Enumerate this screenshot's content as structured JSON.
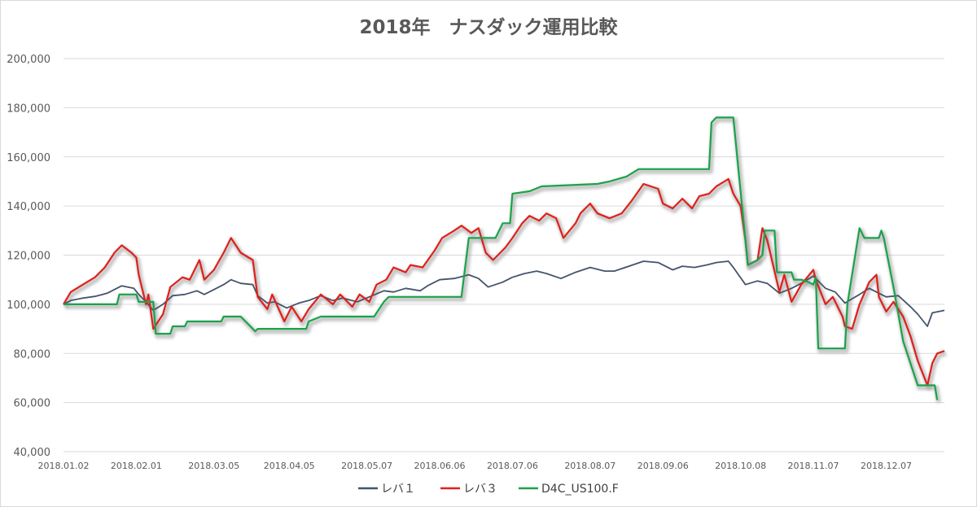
{
  "chart_data": {
    "type": "line",
    "title": "2018年　ナスダック運用比較",
    "xlabel": "",
    "ylabel": "",
    "ylim": [
      40000,
      200000
    ],
    "yticks": [
      40000,
      60000,
      80000,
      100000,
      120000,
      140000,
      160000,
      180000,
      200000
    ],
    "ytick_labels": [
      "40,000",
      "60,000",
      "80,000",
      "100,000",
      "120,000",
      "140,000",
      "160,000",
      "180,000",
      "200,000"
    ],
    "xlim": [
      "2018-01-02",
      "2018-12-31"
    ],
    "xticks": [
      "2018-01-02",
      "2018-02-01",
      "2018-03-05",
      "2018-04-05",
      "2018-05-07",
      "2018-06-06",
      "2018-07-06",
      "2018-08-07",
      "2018-09-06",
      "2018-10-08",
      "2018-11-07",
      "2018-12-07"
    ],
    "xtick_labels": [
      "2018.01.02",
      "2018.02.01",
      "2018.03.05",
      "2018.04.05",
      "2018.05.07",
      "2018.06.06",
      "2018.07.06",
      "2018.08.07",
      "2018.09.06",
      "2018.10.08",
      "2018.11.07",
      "2018.12.07"
    ],
    "grid": true,
    "legend_position": "bottom",
    "series": [
      {
        "name": "レバ１",
        "color": "#44546a",
        "shadow": false,
        "points": [
          [
            "2018-01-02",
            100000
          ],
          [
            "2018-01-05",
            101500
          ],
          [
            "2018-01-10",
            102500
          ],
          [
            "2018-01-15",
            103200
          ],
          [
            "2018-01-20",
            104500
          ],
          [
            "2018-01-26",
            107500
          ],
          [
            "2018-01-31",
            106500
          ],
          [
            "2018-02-02",
            104000
          ],
          [
            "2018-02-05",
            101000
          ],
          [
            "2018-02-08",
            97500
          ],
          [
            "2018-02-12",
            100000
          ],
          [
            "2018-02-16",
            103500
          ],
          [
            "2018-02-21",
            104000
          ],
          [
            "2018-02-26",
            105500
          ],
          [
            "2018-03-01",
            104000
          ],
          [
            "2018-03-05",
            106000
          ],
          [
            "2018-03-09",
            108000
          ],
          [
            "2018-03-12",
            110000
          ],
          [
            "2018-03-16",
            108500
          ],
          [
            "2018-03-21",
            108000
          ],
          [
            "2018-03-23",
            103500
          ],
          [
            "2018-03-27",
            100500
          ],
          [
            "2018-03-30",
            101000
          ],
          [
            "2018-04-04",
            98500
          ],
          [
            "2018-04-09",
            100500
          ],
          [
            "2018-04-13",
            101500
          ],
          [
            "2018-04-18",
            103500
          ],
          [
            "2018-04-23",
            101500
          ],
          [
            "2018-04-27",
            102500
          ],
          [
            "2018-05-03",
            101000
          ],
          [
            "2018-05-08",
            103000
          ],
          [
            "2018-05-14",
            105500
          ],
          [
            "2018-05-18",
            105000
          ],
          [
            "2018-05-23",
            106500
          ],
          [
            "2018-05-29",
            105500
          ],
          [
            "2018-06-01",
            107500
          ],
          [
            "2018-06-06",
            110000
          ],
          [
            "2018-06-12",
            110500
          ],
          [
            "2018-06-18",
            112000
          ],
          [
            "2018-06-22",
            110500
          ],
          [
            "2018-06-26",
            107000
          ],
          [
            "2018-07-02",
            109000
          ],
          [
            "2018-07-06",
            111000
          ],
          [
            "2018-07-11",
            112500
          ],
          [
            "2018-07-16",
            113500
          ],
          [
            "2018-07-20",
            112500
          ],
          [
            "2018-07-26",
            110500
          ],
          [
            "2018-08-01",
            113000
          ],
          [
            "2018-08-07",
            115000
          ],
          [
            "2018-08-13",
            113500
          ],
          [
            "2018-08-17",
            113500
          ],
          [
            "2018-08-23",
            115500
          ],
          [
            "2018-08-29",
            117500
          ],
          [
            "2018-09-04",
            117000
          ],
          [
            "2018-09-10",
            114000
          ],
          [
            "2018-09-14",
            115500
          ],
          [
            "2018-09-19",
            115000
          ],
          [
            "2018-09-24",
            116000
          ],
          [
            "2018-09-28",
            117000
          ],
          [
            "2018-10-03",
            117500
          ],
          [
            "2018-10-05",
            115000
          ],
          [
            "2018-10-10",
            108000
          ],
          [
            "2018-10-15",
            109500
          ],
          [
            "2018-10-19",
            108500
          ],
          [
            "2018-10-24",
            104500
          ],
          [
            "2018-10-29",
            106500
          ],
          [
            "2018-11-02",
            108500
          ],
          [
            "2018-11-07",
            111500
          ],
          [
            "2018-11-12",
            106500
          ],
          [
            "2018-11-16",
            105000
          ],
          [
            "2018-11-20",
            100500
          ],
          [
            "2018-11-26",
            104000
          ],
          [
            "2018-11-30",
            106500
          ],
          [
            "2018-12-04",
            104500
          ],
          [
            "2018-12-07",
            103000
          ],
          [
            "2018-12-12",
            103500
          ],
          [
            "2018-12-17",
            99000
          ],
          [
            "2018-12-20",
            96000
          ],
          [
            "2018-12-24",
            91000
          ],
          [
            "2018-12-26",
            96500
          ],
          [
            "2018-12-31",
            97500
          ]
        ]
      },
      {
        "name": "レバ３",
        "color": "#e0201b",
        "shadow": true,
        "points": [
          [
            "2018-01-02",
            100000
          ],
          [
            "2018-01-05",
            105000
          ],
          [
            "2018-01-10",
            108000
          ],
          [
            "2018-01-15",
            111000
          ],
          [
            "2018-01-19",
            115000
          ],
          [
            "2018-01-23",
            121000
          ],
          [
            "2018-01-26",
            124000
          ],
          [
            "2018-01-30",
            121000
          ],
          [
            "2018-02-01",
            119000
          ],
          [
            "2018-02-02",
            112000
          ],
          [
            "2018-02-05",
            100000
          ],
          [
            "2018-02-06",
            104000
          ],
          [
            "2018-02-08",
            90000
          ],
          [
            "2018-02-12",
            96000
          ],
          [
            "2018-02-15",
            107000
          ],
          [
            "2018-02-20",
            111000
          ],
          [
            "2018-02-23",
            110000
          ],
          [
            "2018-02-27",
            118000
          ],
          [
            "2018-03-01",
            110000
          ],
          [
            "2018-03-05",
            114000
          ],
          [
            "2018-03-09",
            121000
          ],
          [
            "2018-03-12",
            127000
          ],
          [
            "2018-03-16",
            121000
          ],
          [
            "2018-03-21",
            118000
          ],
          [
            "2018-03-23",
            103000
          ],
          [
            "2018-03-27",
            98000
          ],
          [
            "2018-03-29",
            104000
          ],
          [
            "2018-04-03",
            93000
          ],
          [
            "2018-04-06",
            99000
          ],
          [
            "2018-04-10",
            93000
          ],
          [
            "2018-04-13",
            98000
          ],
          [
            "2018-04-18",
            104000
          ],
          [
            "2018-04-23",
            100000
          ],
          [
            "2018-04-26",
            104000
          ],
          [
            "2018-05-01",
            99000
          ],
          [
            "2018-05-04",
            104000
          ],
          [
            "2018-05-08",
            101000
          ],
          [
            "2018-05-11",
            108000
          ],
          [
            "2018-05-15",
            110000
          ],
          [
            "2018-05-18",
            115000
          ],
          [
            "2018-05-23",
            113000
          ],
          [
            "2018-05-25",
            116000
          ],
          [
            "2018-05-30",
            115000
          ],
          [
            "2018-06-04",
            122000
          ],
          [
            "2018-06-07",
            127000
          ],
          [
            "2018-06-12",
            130000
          ],
          [
            "2018-06-15",
            132000
          ],
          [
            "2018-06-19",
            129000
          ],
          [
            "2018-06-22",
            131000
          ],
          [
            "2018-06-25",
            121000
          ],
          [
            "2018-06-28",
            118000
          ],
          [
            "2018-07-03",
            123000
          ],
          [
            "2018-07-06",
            127000
          ],
          [
            "2018-07-10",
            133000
          ],
          [
            "2018-07-13",
            136000
          ],
          [
            "2018-07-17",
            134000
          ],
          [
            "2018-07-20",
            137000
          ],
          [
            "2018-07-24",
            135000
          ],
          [
            "2018-07-27",
            127000
          ],
          [
            "2018-08-01",
            133000
          ],
          [
            "2018-08-03",
            137000
          ],
          [
            "2018-08-07",
            141000
          ],
          [
            "2018-08-10",
            137000
          ],
          [
            "2018-08-15",
            135000
          ],
          [
            "2018-08-20",
            137000
          ],
          [
            "2018-08-24",
            142000
          ],
          [
            "2018-08-29",
            149000
          ],
          [
            "2018-09-04",
            147000
          ],
          [
            "2018-09-06",
            141000
          ],
          [
            "2018-09-10",
            139000
          ],
          [
            "2018-09-14",
            143000
          ],
          [
            "2018-09-18",
            139000
          ],
          [
            "2018-09-21",
            144000
          ],
          [
            "2018-09-25",
            145000
          ],
          [
            "2018-09-28",
            148000
          ],
          [
            "2018-10-03",
            151000
          ],
          [
            "2018-10-05",
            145000
          ],
          [
            "2018-10-08",
            140000
          ],
          [
            "2018-10-10",
            126000
          ],
          [
            "2018-10-11",
            116000
          ],
          [
            "2018-10-15",
            118000
          ],
          [
            "2018-10-17",
            131000
          ],
          [
            "2018-10-19",
            126000
          ],
          [
            "2018-10-24",
            105000
          ],
          [
            "2018-10-26",
            112000
          ],
          [
            "2018-10-29",
            101000
          ],
          [
            "2018-11-02",
            108000
          ],
          [
            "2018-11-07",
            114000
          ],
          [
            "2018-11-08",
            110000
          ],
          [
            "2018-11-12",
            100000
          ],
          [
            "2018-11-15",
            103000
          ],
          [
            "2018-11-19",
            95000
          ],
          [
            "2018-11-20",
            91000
          ],
          [
            "2018-11-23",
            90000
          ],
          [
            "2018-11-26",
            100000
          ],
          [
            "2018-11-30",
            109000
          ],
          [
            "2018-12-03",
            112000
          ],
          [
            "2018-12-04",
            103000
          ],
          [
            "2018-12-07",
            97000
          ],
          [
            "2018-12-10",
            101000
          ],
          [
            "2018-12-14",
            95000
          ],
          [
            "2018-12-17",
            87000
          ],
          [
            "2018-12-20",
            77000
          ],
          [
            "2018-12-24",
            67000
          ],
          [
            "2018-12-26",
            76000
          ],
          [
            "2018-12-28",
            80000
          ],
          [
            "2018-12-31",
            81000
          ]
        ]
      },
      {
        "name": "D4C_US100.F",
        "color": "#1aa34a",
        "shadow": true,
        "points": [
          [
            "2018-01-02",
            100000
          ],
          [
            "2018-01-24",
            100000
          ],
          [
            "2018-01-25",
            104000
          ],
          [
            "2018-02-01",
            104000
          ],
          [
            "2018-02-02",
            101000
          ],
          [
            "2018-02-08",
            101000
          ],
          [
            "2018-02-09",
            88000
          ],
          [
            "2018-02-15",
            88000
          ],
          [
            "2018-02-16",
            91000
          ],
          [
            "2018-02-21",
            91000
          ],
          [
            "2018-02-22",
            93000
          ],
          [
            "2018-03-08",
            93000
          ],
          [
            "2018-03-09",
            95000
          ],
          [
            "2018-03-16",
            95000
          ],
          [
            "2018-03-20",
            91000
          ],
          [
            "2018-03-22",
            89000
          ],
          [
            "2018-03-23",
            90000
          ],
          [
            "2018-04-12",
            90000
          ],
          [
            "2018-04-13",
            93000
          ],
          [
            "2018-04-18",
            95000
          ],
          [
            "2018-05-10",
            95000
          ],
          [
            "2018-05-14",
            101000
          ],
          [
            "2018-05-16",
            103000
          ],
          [
            "2018-06-15",
            103000
          ],
          [
            "2018-06-18",
            127000
          ],
          [
            "2018-06-29",
            127000
          ],
          [
            "2018-07-02",
            133000
          ],
          [
            "2018-07-05",
            133000
          ],
          [
            "2018-07-06",
            145000
          ],
          [
            "2018-07-13",
            146000
          ],
          [
            "2018-07-18",
            148000
          ],
          [
            "2018-08-10",
            149000
          ],
          [
            "2018-08-15",
            150000
          ],
          [
            "2018-08-22",
            152000
          ],
          [
            "2018-08-27",
            155000
          ],
          [
            "2018-09-25",
            155000
          ],
          [
            "2018-09-26",
            174000
          ],
          [
            "2018-09-28",
            176000
          ],
          [
            "2018-10-05",
            176000
          ],
          [
            "2018-10-08",
            146000
          ],
          [
            "2018-10-11",
            116000
          ],
          [
            "2018-10-15",
            118000
          ],
          [
            "2018-10-17",
            120000
          ],
          [
            "2018-10-18",
            130000
          ],
          [
            "2018-10-22",
            130000
          ],
          [
            "2018-10-23",
            113000
          ],
          [
            "2018-10-29",
            113000
          ],
          [
            "2018-10-30",
            110000
          ],
          [
            "2018-11-02",
            110000
          ],
          [
            "2018-11-05",
            109000
          ],
          [
            "2018-11-07",
            108000
          ],
          [
            "2018-11-08",
            111000
          ],
          [
            "2018-11-09",
            82000
          ],
          [
            "2018-11-20",
            82000
          ],
          [
            "2018-11-21",
            100000
          ],
          [
            "2018-11-26",
            131000
          ],
          [
            "2018-11-28",
            127000
          ],
          [
            "2018-12-04",
            127000
          ],
          [
            "2018-12-05",
            130000
          ],
          [
            "2018-12-06",
            127000
          ],
          [
            "2018-12-10",
            107000
          ],
          [
            "2018-12-14",
            85000
          ],
          [
            "2018-12-20",
            67000
          ],
          [
            "2018-12-27",
            67000
          ],
          [
            "2018-12-28",
            61000
          ]
        ]
      }
    ]
  }
}
